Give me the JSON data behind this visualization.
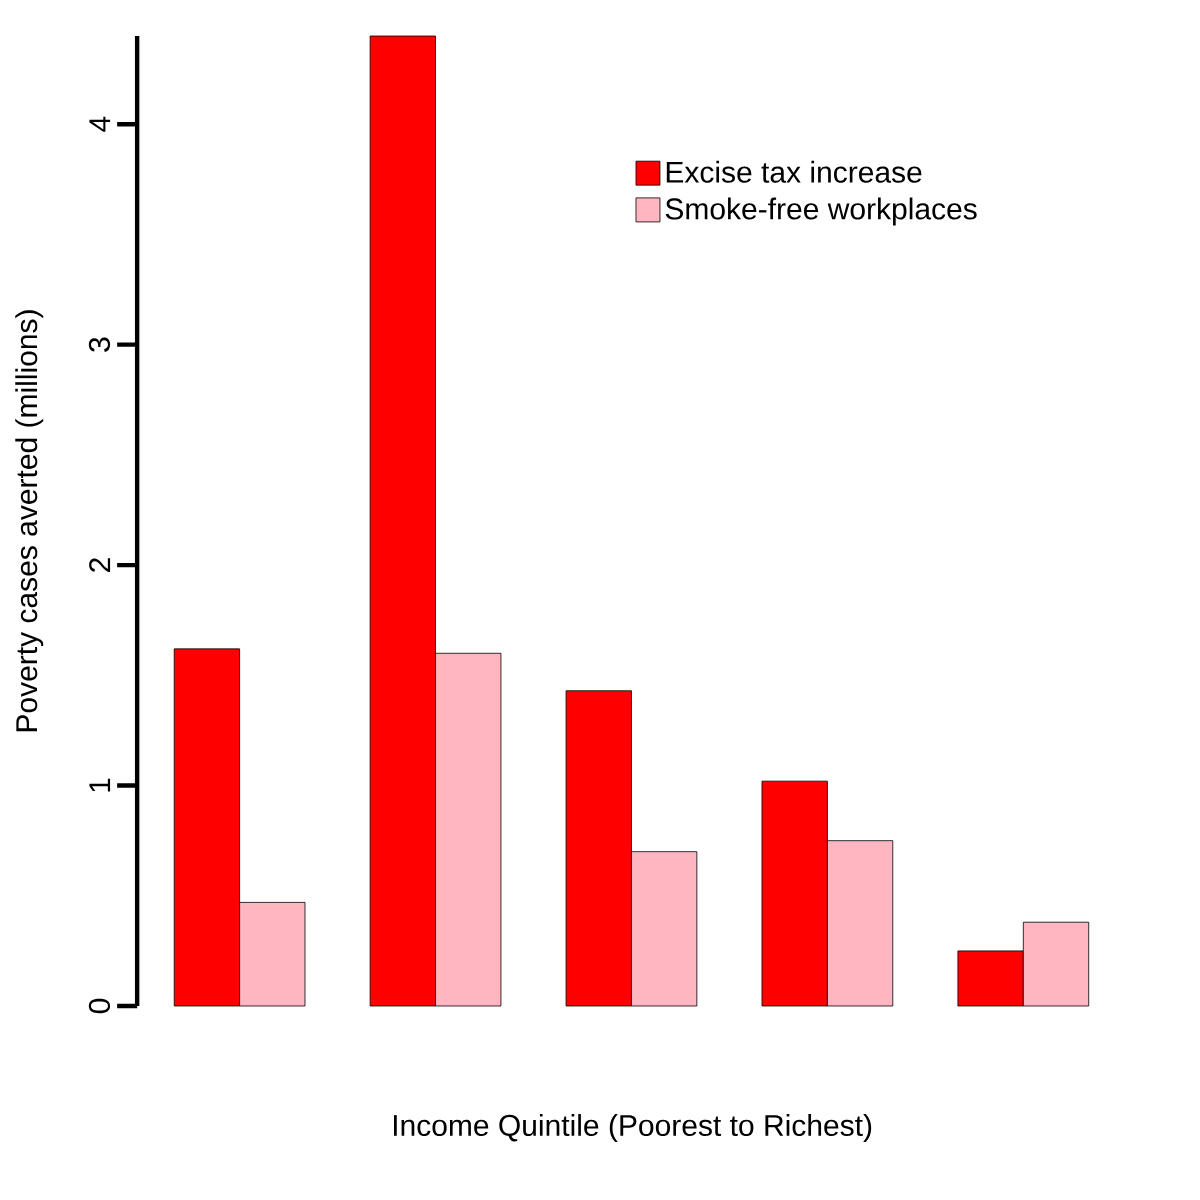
{
  "chart_data": {
    "type": "bar",
    "xlabel": "Income Quintile (Poorest to Richest)",
    "ylabel": "Poverty cases averted (millions)",
    "categories": [
      null,
      null,
      null,
      null,
      null
    ],
    "series": [
      {
        "name": "Excise tax increase",
        "color": "#ff0000",
        "values": [
          1.62,
          4.4,
          1.43,
          1.02,
          0.25
        ]
      },
      {
        "name": "Smoke-free workplaces",
        "color": "#ffb6c1",
        "values": [
          0.47,
          1.6,
          0.7,
          0.75,
          0.38
        ]
      }
    ],
    "ylim": [
      0,
      4.4
    ],
    "yticks": [
      0,
      1,
      2,
      3,
      4
    ],
    "legend": "top right",
    "tick_labels": "y",
    "grid": false
  }
}
